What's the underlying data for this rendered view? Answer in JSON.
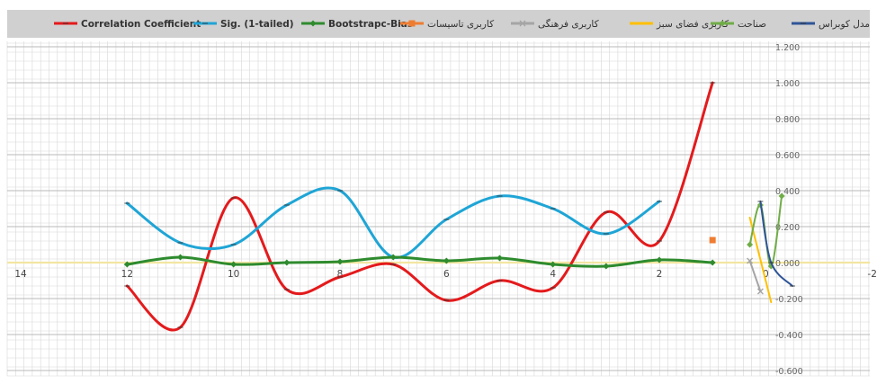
{
  "chart_data": {
    "type": "line",
    "legend_position": "top",
    "grid": true,
    "x_axis": {
      "min": -2,
      "max": 14,
      "reversed": true,
      "tick_values": [
        14,
        12,
        10,
        8,
        6,
        4,
        2,
        0,
        -2
      ],
      "tick_labels": [
        "14",
        "12",
        "10",
        "8",
        "6",
        "4",
        "2",
        "0",
        "-2"
      ]
    },
    "y_axis": {
      "min": -0.6,
      "max": 1.2,
      "position": "right",
      "tick_values": [
        1.2,
        1.0,
        0.8,
        0.6,
        0.4,
        0.2,
        0.0,
        -0.2,
        -0.4,
        -0.6
      ],
      "tick_labels": [
        "1.200",
        "1.000",
        "0.800",
        "0.600",
        "0.400",
        "0.200",
        "0.000",
        "-0.200",
        "-0.400",
        "-0.600"
      ]
    },
    "series": [
      {
        "name": "Correlation Coefficient",
        "color": "#e41a1c",
        "width": 3,
        "marker": "dash",
        "x": [
          12,
          11,
          10,
          9,
          8,
          7,
          6,
          5,
          4,
          3,
          2,
          1
        ],
        "y": [
          -0.13,
          -0.36,
          0.36,
          -0.15,
          -0.08,
          -0.01,
          -0.21,
          -0.1,
          -0.14,
          0.28,
          0.12,
          1.0
        ]
      },
      {
        "name": "Sig. (1-tailed)",
        "color": "#1fa5d6",
        "width": 3,
        "marker": "dash",
        "x": [
          12,
          11,
          10,
          9,
          8,
          7,
          6,
          5,
          4,
          3,
          2
        ],
        "y": [
          0.33,
          0.11,
          0.1,
          0.32,
          0.4,
          0.03,
          0.24,
          0.37,
          0.3,
          0.16,
          0.34
        ]
      },
      {
        "name": "Bootstrapc-Bias",
        "color": "#2e8b2e",
        "width": 3,
        "marker": "diamond",
        "x": [
          12,
          11,
          10,
          9,
          8,
          7,
          6,
          5,
          4,
          3,
          2,
          1
        ],
        "y": [
          -0.01,
          0.03,
          -0.01,
          0.0,
          0.005,
          0.03,
          0.01,
          0.025,
          -0.01,
          -0.02,
          0.015,
          0.0
        ]
      },
      {
        "name": "کاربری تاسیسات",
        "color": "#ee7d31",
        "width": 2,
        "marker": "square",
        "x": [
          1
        ],
        "y": [
          0.125
        ]
      },
      {
        "name": "کاربری فرهنگی",
        "color": "#a5a5a5",
        "width": 2,
        "marker": "x",
        "x": [
          0.1,
          0.3
        ],
        "y": [
          -0.16,
          0.01
        ]
      },
      {
        "name": "کاربری فضای سبز",
        "color": "#ffc000",
        "width": 2,
        "marker": "none",
        "x": [
          0.3,
          -0.1
        ],
        "y": [
          0.25,
          -0.22
        ]
      },
      {
        "name": "صناحت",
        "color": "#70ad47",
        "width": 2,
        "marker": "diamond",
        "x": [
          0.3,
          0.1,
          -0.1,
          -0.3
        ],
        "y": [
          0.1,
          0.32,
          -0.02,
          0.37
        ]
      },
      {
        "name": "مدل کوبراس",
        "color": "#2f5597",
        "width": 2,
        "marker": "dash",
        "x": [
          0.1,
          -0.1,
          -0.5
        ],
        "y": [
          0.34,
          0.0,
          -0.13
        ]
      }
    ],
    "reference_line": {
      "y": 0.0,
      "color": "#f2e6a1"
    }
  }
}
